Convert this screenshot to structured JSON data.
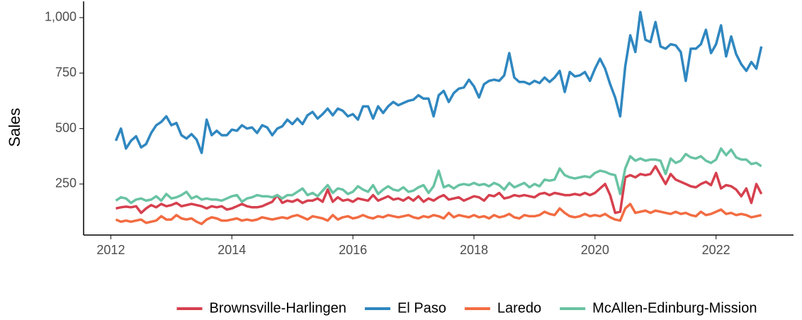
{
  "chart_data": {
    "type": "line",
    "y_label": "Sales",
    "x": [
      2012.083,
      2012.167,
      2012.25,
      2012.333,
      2012.417,
      2012.5,
      2012.583,
      2012.667,
      2012.75,
      2012.833,
      2012.917,
      2013,
      2013.083,
      2013.167,
      2013.25,
      2013.333,
      2013.417,
      2013.5,
      2013.583,
      2013.667,
      2013.75,
      2013.833,
      2013.917,
      2014,
      2014.083,
      2014.167,
      2014.25,
      2014.333,
      2014.417,
      2014.5,
      2014.583,
      2014.667,
      2014.75,
      2014.833,
      2014.917,
      2015,
      2015.083,
      2015.167,
      2015.25,
      2015.333,
      2015.417,
      2015.5,
      2015.583,
      2015.667,
      2015.75,
      2015.833,
      2015.917,
      2016,
      2016.083,
      2016.167,
      2016.25,
      2016.333,
      2016.417,
      2016.5,
      2016.583,
      2016.667,
      2016.75,
      2016.833,
      2016.917,
      2017,
      2017.083,
      2017.167,
      2017.25,
      2017.333,
      2017.417,
      2017.5,
      2017.583,
      2017.667,
      2017.75,
      2017.833,
      2017.917,
      2018,
      2018.083,
      2018.167,
      2018.25,
      2018.333,
      2018.417,
      2018.5,
      2018.583,
      2018.667,
      2018.75,
      2018.833,
      2018.917,
      2019,
      2019.083,
      2019.167,
      2019.25,
      2019.333,
      2019.417,
      2019.5,
      2019.583,
      2019.667,
      2019.75,
      2019.833,
      2019.917,
      2020,
      2020.083,
      2020.167,
      2020.25,
      2020.333,
      2020.417,
      2020.5,
      2020.583,
      2020.667,
      2020.75,
      2020.833,
      2020.917,
      2021,
      2021.083,
      2021.167,
      2021.25,
      2021.333,
      2021.417,
      2021.5,
      2021.583,
      2021.667,
      2021.75,
      2021.833,
      2021.917,
      2022,
      2022.083,
      2022.167,
      2022.25,
      2022.333,
      2022.417,
      2022.5,
      2022.583,
      2022.667,
      2022.75
    ],
    "series": [
      {
        "name": "Brownsville-Harlingen",
        "color": "#d6404e",
        "values": [
          140,
          145,
          148,
          145,
          150,
          120,
          140,
          155,
          145,
          160,
          150,
          155,
          165,
          150,
          155,
          160,
          155,
          150,
          140,
          150,
          145,
          150,
          135,
          140,
          150,
          160,
          150,
          145,
          145,
          150,
          160,
          170,
          200,
          165,
          175,
          170,
          180,
          165,
          175,
          175,
          185,
          170,
          225,
          170,
          190,
          175,
          180,
          170,
          185,
          180,
          175,
          200,
          175,
          185,
          195,
          180,
          185,
          175,
          190,
          175,
          195,
          170,
          185,
          175,
          190,
          200,
          180,
          185,
          190,
          175,
          185,
          195,
          190,
          175,
          200,
          195,
          210,
          185,
          190,
          200,
          195,
          200,
          195,
          190,
          205,
          210,
          200,
          210,
          205,
          200,
          200,
          205,
          200,
          210,
          200,
          210,
          230,
          250,
          200,
          120,
          125,
          280,
          290,
          280,
          295,
          290,
          295,
          330,
          290,
          250,
          295,
          270,
          260,
          250,
          240,
          235,
          250,
          260,
          245,
          300,
          230,
          245,
          240,
          225,
          195,
          230,
          165,
          250,
          205
        ]
      },
      {
        "name": "El Paso",
        "color": "#2f87c0",
        "values": [
          445,
          500,
          410,
          445,
          465,
          415,
          430,
          480,
          515,
          530,
          555,
          515,
          525,
          470,
          455,
          475,
          450,
          390,
          540,
          470,
          490,
          470,
          470,
          495,
          490,
          515,
          500,
          505,
          480,
          515,
          505,
          470,
          500,
          510,
          540,
          520,
          545,
          520,
          560,
          575,
          545,
          565,
          590,
          560,
          590,
          580,
          555,
          565,
          540,
          600,
          600,
          545,
          600,
          570,
          600,
          620,
          605,
          615,
          625,
          630,
          650,
          635,
          635,
          555,
          650,
          670,
          620,
          660,
          680,
          685,
          720,
          690,
          640,
          700,
          715,
          720,
          715,
          740,
          840,
          730,
          710,
          710,
          700,
          715,
          705,
          730,
          710,
          730,
          760,
          665,
          755,
          735,
          740,
          755,
          715,
          770,
          815,
          770,
          700,
          640,
          555,
          780,
          920,
          845,
          1025,
          900,
          890,
          980,
          870,
          860,
          880,
          875,
          845,
          715,
          860,
          860,
          880,
          945,
          840,
          880,
          965,
          825,
          915,
          835,
          790,
          760,
          800,
          770,
          870
        ]
      },
      {
        "name": "Laredo",
        "color": "#f26c42",
        "values": [
          90,
          80,
          85,
          80,
          85,
          90,
          75,
          80,
          85,
          105,
          90,
          90,
          110,
          95,
          90,
          95,
          80,
          70,
          90,
          100,
          95,
          85,
          85,
          90,
          95,
          85,
          90,
          85,
          90,
          100,
          95,
          90,
          95,
          100,
          95,
          105,
          110,
          100,
          90,
          105,
          100,
          95,
          85,
          110,
          90,
          100,
          105,
          95,
          100,
          110,
          100,
          95,
          105,
          100,
          110,
          105,
          100,
          105,
          110,
          100,
          95,
          105,
          100,
          110,
          105,
          95,
          120,
          100,
          110,
          105,
          100,
          110,
          100,
          105,
          95,
          110,
          100,
          105,
          115,
          100,
          95,
          110,
          105,
          105,
          110,
          125,
          115,
          110,
          140,
          120,
          105,
          100,
          105,
          115,
          105,
          110,
          105,
          115,
          100,
          90,
          85,
          140,
          160,
          120,
          125,
          130,
          120,
          130,
          125,
          120,
          115,
          125,
          115,
          120,
          110,
          105,
          125,
          110,
          115,
          125,
          135,
          115,
          120,
          110,
          115,
          110,
          100,
          105,
          110
        ]
      },
      {
        "name": "McAllen-Edinburg-Mission",
        "color": "#69c3a3",
        "values": [
          175,
          190,
          185,
          165,
          180,
          185,
          175,
          180,
          195,
          175,
          205,
          185,
          190,
          200,
          215,
          185,
          195,
          180,
          185,
          180,
          180,
          175,
          185,
          195,
          200,
          170,
          185,
          190,
          200,
          195,
          195,
          190,
          200,
          185,
          200,
          200,
          215,
          230,
          200,
          210,
          195,
          220,
          245,
          210,
          230,
          225,
          205,
          215,
          240,
          225,
          215,
          245,
          205,
          225,
          240,
          225,
          220,
          235,
          215,
          220,
          235,
          245,
          210,
          240,
          310,
          235,
          245,
          230,
          245,
          250,
          245,
          255,
          245,
          250,
          240,
          255,
          245,
          225,
          255,
          235,
          245,
          255,
          235,
          250,
          240,
          270,
          265,
          270,
          320,
          290,
          280,
          275,
          280,
          285,
          280,
          300,
          310,
          305,
          295,
          290,
          205,
          320,
          375,
          355,
          365,
          355,
          360,
          360,
          355,
          295,
          365,
          345,
          355,
          385,
          370,
          365,
          375,
          355,
          345,
          360,
          410,
          380,
          405,
          370,
          360,
          360,
          340,
          345,
          330
        ]
      }
    ],
    "xlim": [
      2011.55,
      2023.28
    ],
    "xticks": [
      2012,
      2014,
      2016,
      2018,
      2020,
      2022
    ],
    "ylim": [
      20,
      1073
    ],
    "yticks": [
      250,
      500,
      750,
      {
        "value": 1000,
        "label": "1,000"
      }
    ],
    "grid": false,
    "legend_position": "bottom"
  }
}
